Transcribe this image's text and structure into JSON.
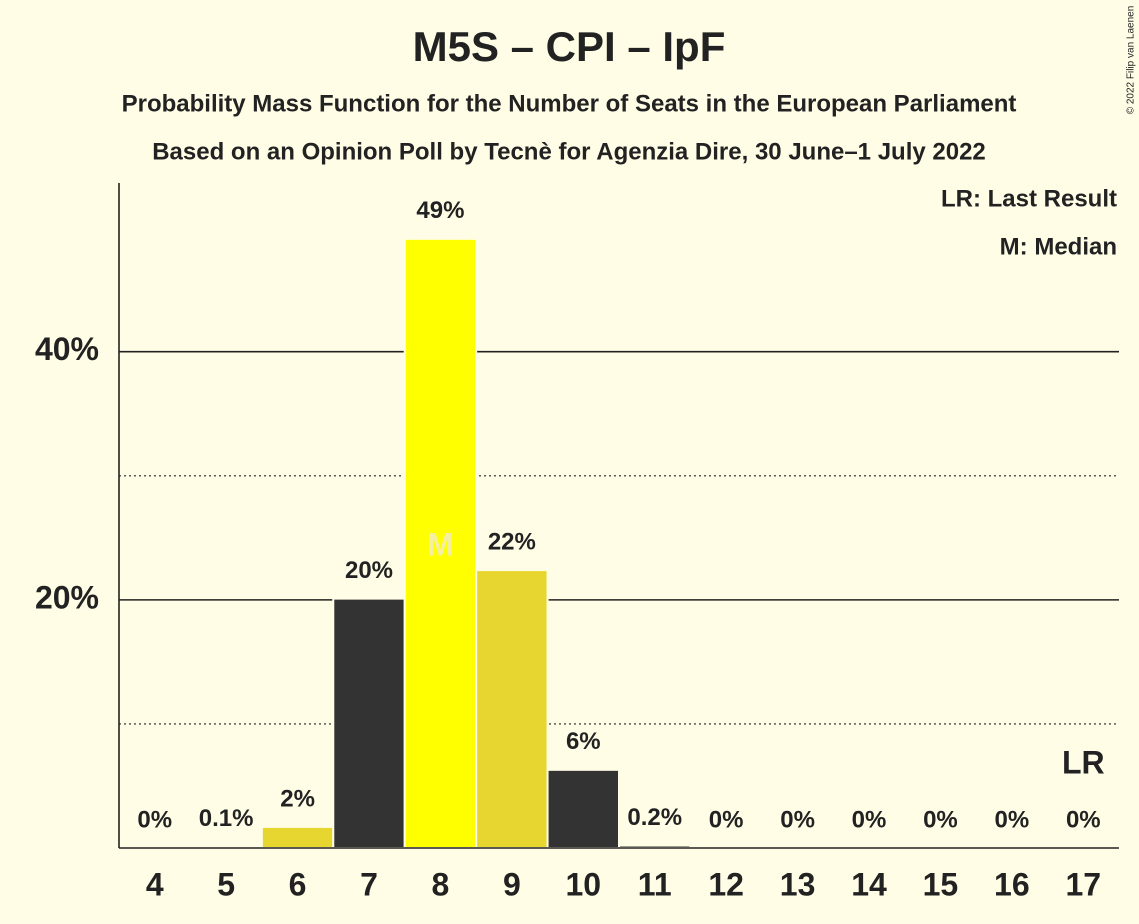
{
  "chart_data": {
    "type": "bar",
    "title": "M5S – CPI – IpF",
    "subtitle": "Probability Mass Function for the Number of Seats in the European Parliament",
    "subtitle2": "Based on an Opinion Poll by Tecnè for Agenzia Dire, 30 June–1 July 2022",
    "copyright": "© 2022 Filip van Laenen",
    "legend": [
      "LR: Last Result",
      "M: Median"
    ],
    "median_marker": "M",
    "median": "8",
    "last_result_marker": "LR",
    "last_result": "17",
    "categories": [
      "4",
      "5",
      "6",
      "7",
      "8",
      "9",
      "10",
      "11",
      "12",
      "13",
      "14",
      "15",
      "16",
      "17"
    ],
    "values": [
      0,
      0.1,
      1.7,
      20.1,
      49.1,
      22.4,
      6.3,
      0.2,
      0,
      0,
      0,
      0,
      0,
      0
    ],
    "value_labels": [
      "0%",
      "0.1%",
      "2%",
      "20%",
      "49%",
      "22%",
      "6%",
      "0.2%",
      "0%",
      "0%",
      "0%",
      "0%",
      "0%",
      "0%"
    ],
    "colors": [
      "#333333",
      "#333333",
      "#e8d630",
      "#333333",
      "#ffff00",
      "#e8d630",
      "#333333",
      "#333333",
      "#333333",
      "#333333",
      "#333333",
      "#333333",
      "#333333",
      "#333333"
    ],
    "ylim": [
      0,
      53.6
    ],
    "yticks": [
      {
        "value": 20,
        "label": "20%"
      },
      {
        "value": 40,
        "label": "40%"
      }
    ],
    "minor_yticks": [
      10,
      30
    ],
    "grid": true
  }
}
